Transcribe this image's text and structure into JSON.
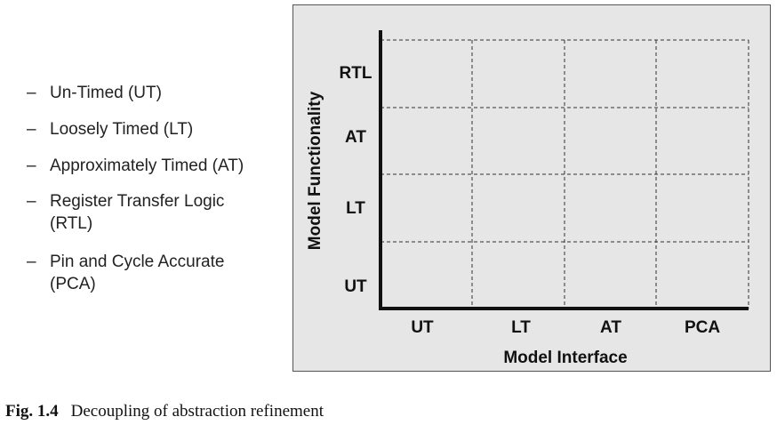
{
  "legend": [
    {
      "dash": "–",
      "text": "Un-Timed (UT)"
    },
    {
      "dash": "–",
      "text": "Loosely Timed (LT)"
    },
    {
      "dash": "–",
      "text": "Approximately Timed (AT)"
    },
    {
      "dash": "–",
      "text": "Register Transfer Logic (RTL)"
    },
    {
      "dash": "–",
      "text": "Pin and Cycle Accurate (PCA)"
    }
  ],
  "diagram": {
    "y_axis_title": "Model Functionality",
    "x_axis_title": "Model Interface",
    "y_levels": [
      "UT",
      "LT",
      "AT",
      "RTL"
    ],
    "x_levels": [
      "UT",
      "LT",
      "AT",
      "PCA"
    ]
  },
  "caption": {
    "label": "Fig. 1.4",
    "text": "Decoupling of abstraction refinement"
  }
}
